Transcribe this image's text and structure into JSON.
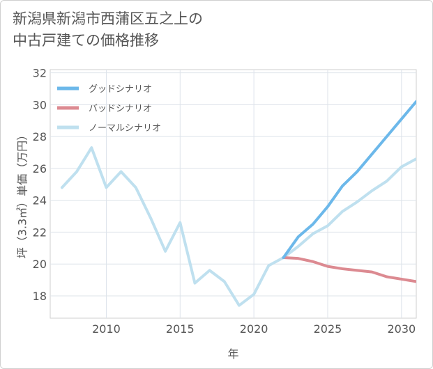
{
  "title_line1": "新潟県新潟市西蒲区五之上の",
  "title_line2": "中古戸建ての価格推移",
  "chart_data": {
    "type": "line",
    "title": "新潟県新潟市西蒲区五之上の中古戸建ての価格推移",
    "xlabel": "年",
    "ylabel": "坪（3.3㎡）単価（万円）",
    "xlim": [
      2006.2,
      2031
    ],
    "ylim": [
      16.6,
      32.2
    ],
    "xticks": [
      2010,
      2015,
      2020,
      2025,
      2030
    ],
    "yticks": [
      18,
      20,
      22,
      24,
      26,
      28,
      30,
      32
    ],
    "grid": true,
    "legend_position": "top-left",
    "series": [
      {
        "name": "グッドシナリオ",
        "color": "#6cb8ea",
        "x": [
          2022,
          2023,
          2024,
          2025,
          2026,
          2027,
          2028,
          2029,
          2030,
          2031
        ],
        "values": [
          20.4,
          21.7,
          22.5,
          23.6,
          24.9,
          25.8,
          26.9,
          28.0,
          29.1,
          30.2
        ]
      },
      {
        "name": "バッドシナリオ",
        "color": "#dc8a91",
        "x": [
          2022,
          2023,
          2024,
          2025,
          2026,
          2027,
          2028,
          2029,
          2030,
          2031
        ],
        "values": [
          20.4,
          20.35,
          20.15,
          19.85,
          19.7,
          19.6,
          19.5,
          19.2,
          19.05,
          18.9
        ]
      },
      {
        "name": "ノーマルシナリオ",
        "color": "#bfe0ef",
        "x": [
          2007,
          2008,
          2009,
          2010,
          2011,
          2012,
          2013,
          2014,
          2015,
          2016,
          2017,
          2018,
          2019,
          2020,
          2021,
          2022,
          2023,
          2024,
          2025,
          2026,
          2027,
          2028,
          2029,
          2030,
          2031
        ],
        "values": [
          24.8,
          25.8,
          27.3,
          24.8,
          25.8,
          24.8,
          22.9,
          20.8,
          22.6,
          18.8,
          19.6,
          18.9,
          17.4,
          18.1,
          19.9,
          20.4,
          21.1,
          21.9,
          22.4,
          23.3,
          23.9,
          24.6,
          25.2,
          26.1,
          26.6
        ]
      }
    ]
  }
}
